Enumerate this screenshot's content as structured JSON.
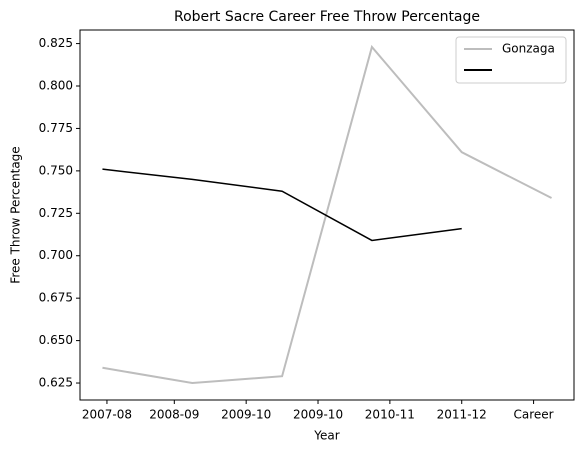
{
  "chart_data": {
    "type": "line",
    "title": "Robert Sacre Career Free Throw Percentage",
    "x_label": "Year",
    "y_label": "Free Throw Percentage",
    "x": [
      0,
      1,
      2,
      3,
      4,
      5
    ],
    "xlim": [
      -0.25,
      5.25
    ],
    "xticks": [
      {
        "value": 0.05,
        "label": "2007-08"
      },
      {
        "value": 0.8,
        "label": "2008-09"
      },
      {
        "value": 1.6,
        "label": "2009-10"
      },
      {
        "value": 2.4,
        "label": "2009-10"
      },
      {
        "value": 3.2,
        "label": "2010-11"
      },
      {
        "value": 4.0,
        "label": "2011-12"
      },
      {
        "value": 4.8,
        "label": "Career"
      }
    ],
    "ylim": [
      0.615,
      0.833
    ],
    "yticks": [
      0.625,
      {
        "value": 0.65,
        "label": "0.650"
      },
      0.675,
      {
        "value": 0.7,
        "label": "0.700"
      },
      0.725,
      {
        "value": 0.75,
        "label": "0.750"
      },
      0.775,
      {
        "value": 0.8,
        "label": "0.800"
      },
      0.825
    ],
    "series": [
      {
        "name": "Gonzaga",
        "color": "#bdbdbd",
        "values": [
          0.634,
          0.625,
          0.629,
          0.823,
          0.761,
          0.734
        ]
      },
      {
        "color": "#000000",
        "values": [
          0.751,
          0.745,
          0.738,
          0.709,
          0.716,
          null
        ]
      }
    ],
    "legend": "upper right",
    "grid": false
  }
}
